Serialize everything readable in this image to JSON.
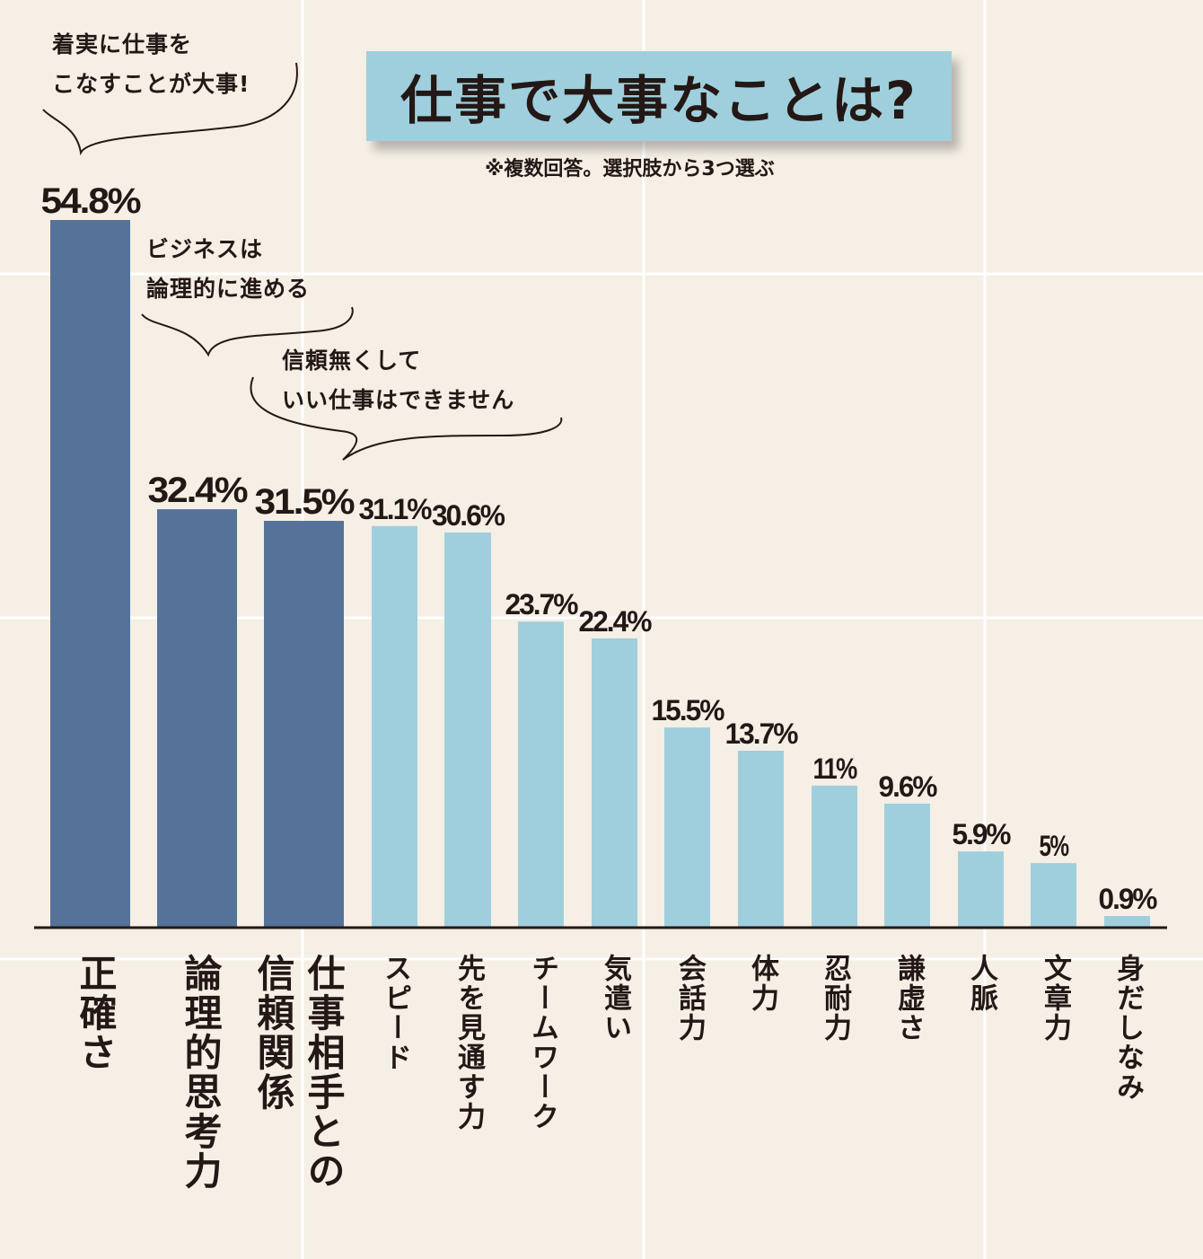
{
  "chart_data": {
    "type": "bar",
    "title": "仕事で大事なことは?",
    "subtitle": "※複数回答。選択肢から3つ選ぶ",
    "categories": [
      "正確さ",
      "論理的思考力",
      "仕事相手との\n信頼関係",
      "スピード",
      "先を見通す力",
      "チームワーク",
      "気遣い",
      "会話力",
      "体力",
      "忍耐力",
      "謙虚さ",
      "人脈",
      "文章力",
      "身だしなみ"
    ],
    "values": [
      54.8,
      32.4,
      31.5,
      31.1,
      30.6,
      23.7,
      22.4,
      15.5,
      13.7,
      11,
      9.6,
      5.9,
      5,
      0.9
    ],
    "value_labels": [
      "54.8%",
      "32.4%",
      "31.5%",
      "31.1%",
      "30.6%",
      "23.7%",
      "22.4%",
      "15.5%",
      "13.7%",
      "11%",
      "9.6%",
      "5.9%",
      "5%",
      "0.9%"
    ],
    "highlight_top": 3,
    "colors": {
      "highlight": "#557299",
      "normal": "#9fcfdc",
      "background": "#f5efe5",
      "grid": "#ffffff"
    },
    "ylim": [
      0,
      56
    ],
    "grid": true,
    "annotations": [
      {
        "target": "正確さ",
        "text": "着実に仕事を\nこなすことが大事!"
      },
      {
        "target": "論理的思考力",
        "text": "ビジネスは\n論理的に進める"
      },
      {
        "target": "仕事相手との信頼関係",
        "text": "信頼無くして\nいい仕事はできません"
      }
    ]
  }
}
